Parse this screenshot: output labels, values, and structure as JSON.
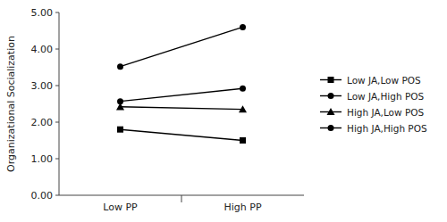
{
  "chart_data": {
    "type": "line",
    "categories": [
      "Low PP",
      "High PP"
    ],
    "series": [
      {
        "name": "Low JA,Low POS",
        "color": "#000000",
        "marker": "square",
        "values": [
          1.8,
          1.5
        ]
      },
      {
        "name": "Low JA,High POS",
        "color": "#000000",
        "marker": "circle",
        "values": [
          2.57,
          2.92
        ]
      },
      {
        "name": "High JA,Low POS",
        "color": "#000000",
        "marker": "triangle",
        "values": [
          2.42,
          2.35
        ]
      },
      {
        "name": "High JA,High POS",
        "color": "#000000",
        "marker": "circle",
        "values": [
          3.52,
          4.6
        ]
      }
    ],
    "y_label": "Organizational Socialization",
    "ylim": [
      0.0,
      5.0
    ],
    "yticks": [
      {
        "value": 0.0,
        "label": "0.00"
      },
      {
        "value": 1.0,
        "label": "1.00"
      },
      {
        "value": 2.0,
        "label": "2.00"
      },
      {
        "value": 3.0,
        "label": "3.00"
      },
      {
        "value": 4.0,
        "label": "4.00"
      },
      {
        "value": 5.0,
        "label": "5.00"
      }
    ],
    "grid": false,
    "legend": "right"
  }
}
